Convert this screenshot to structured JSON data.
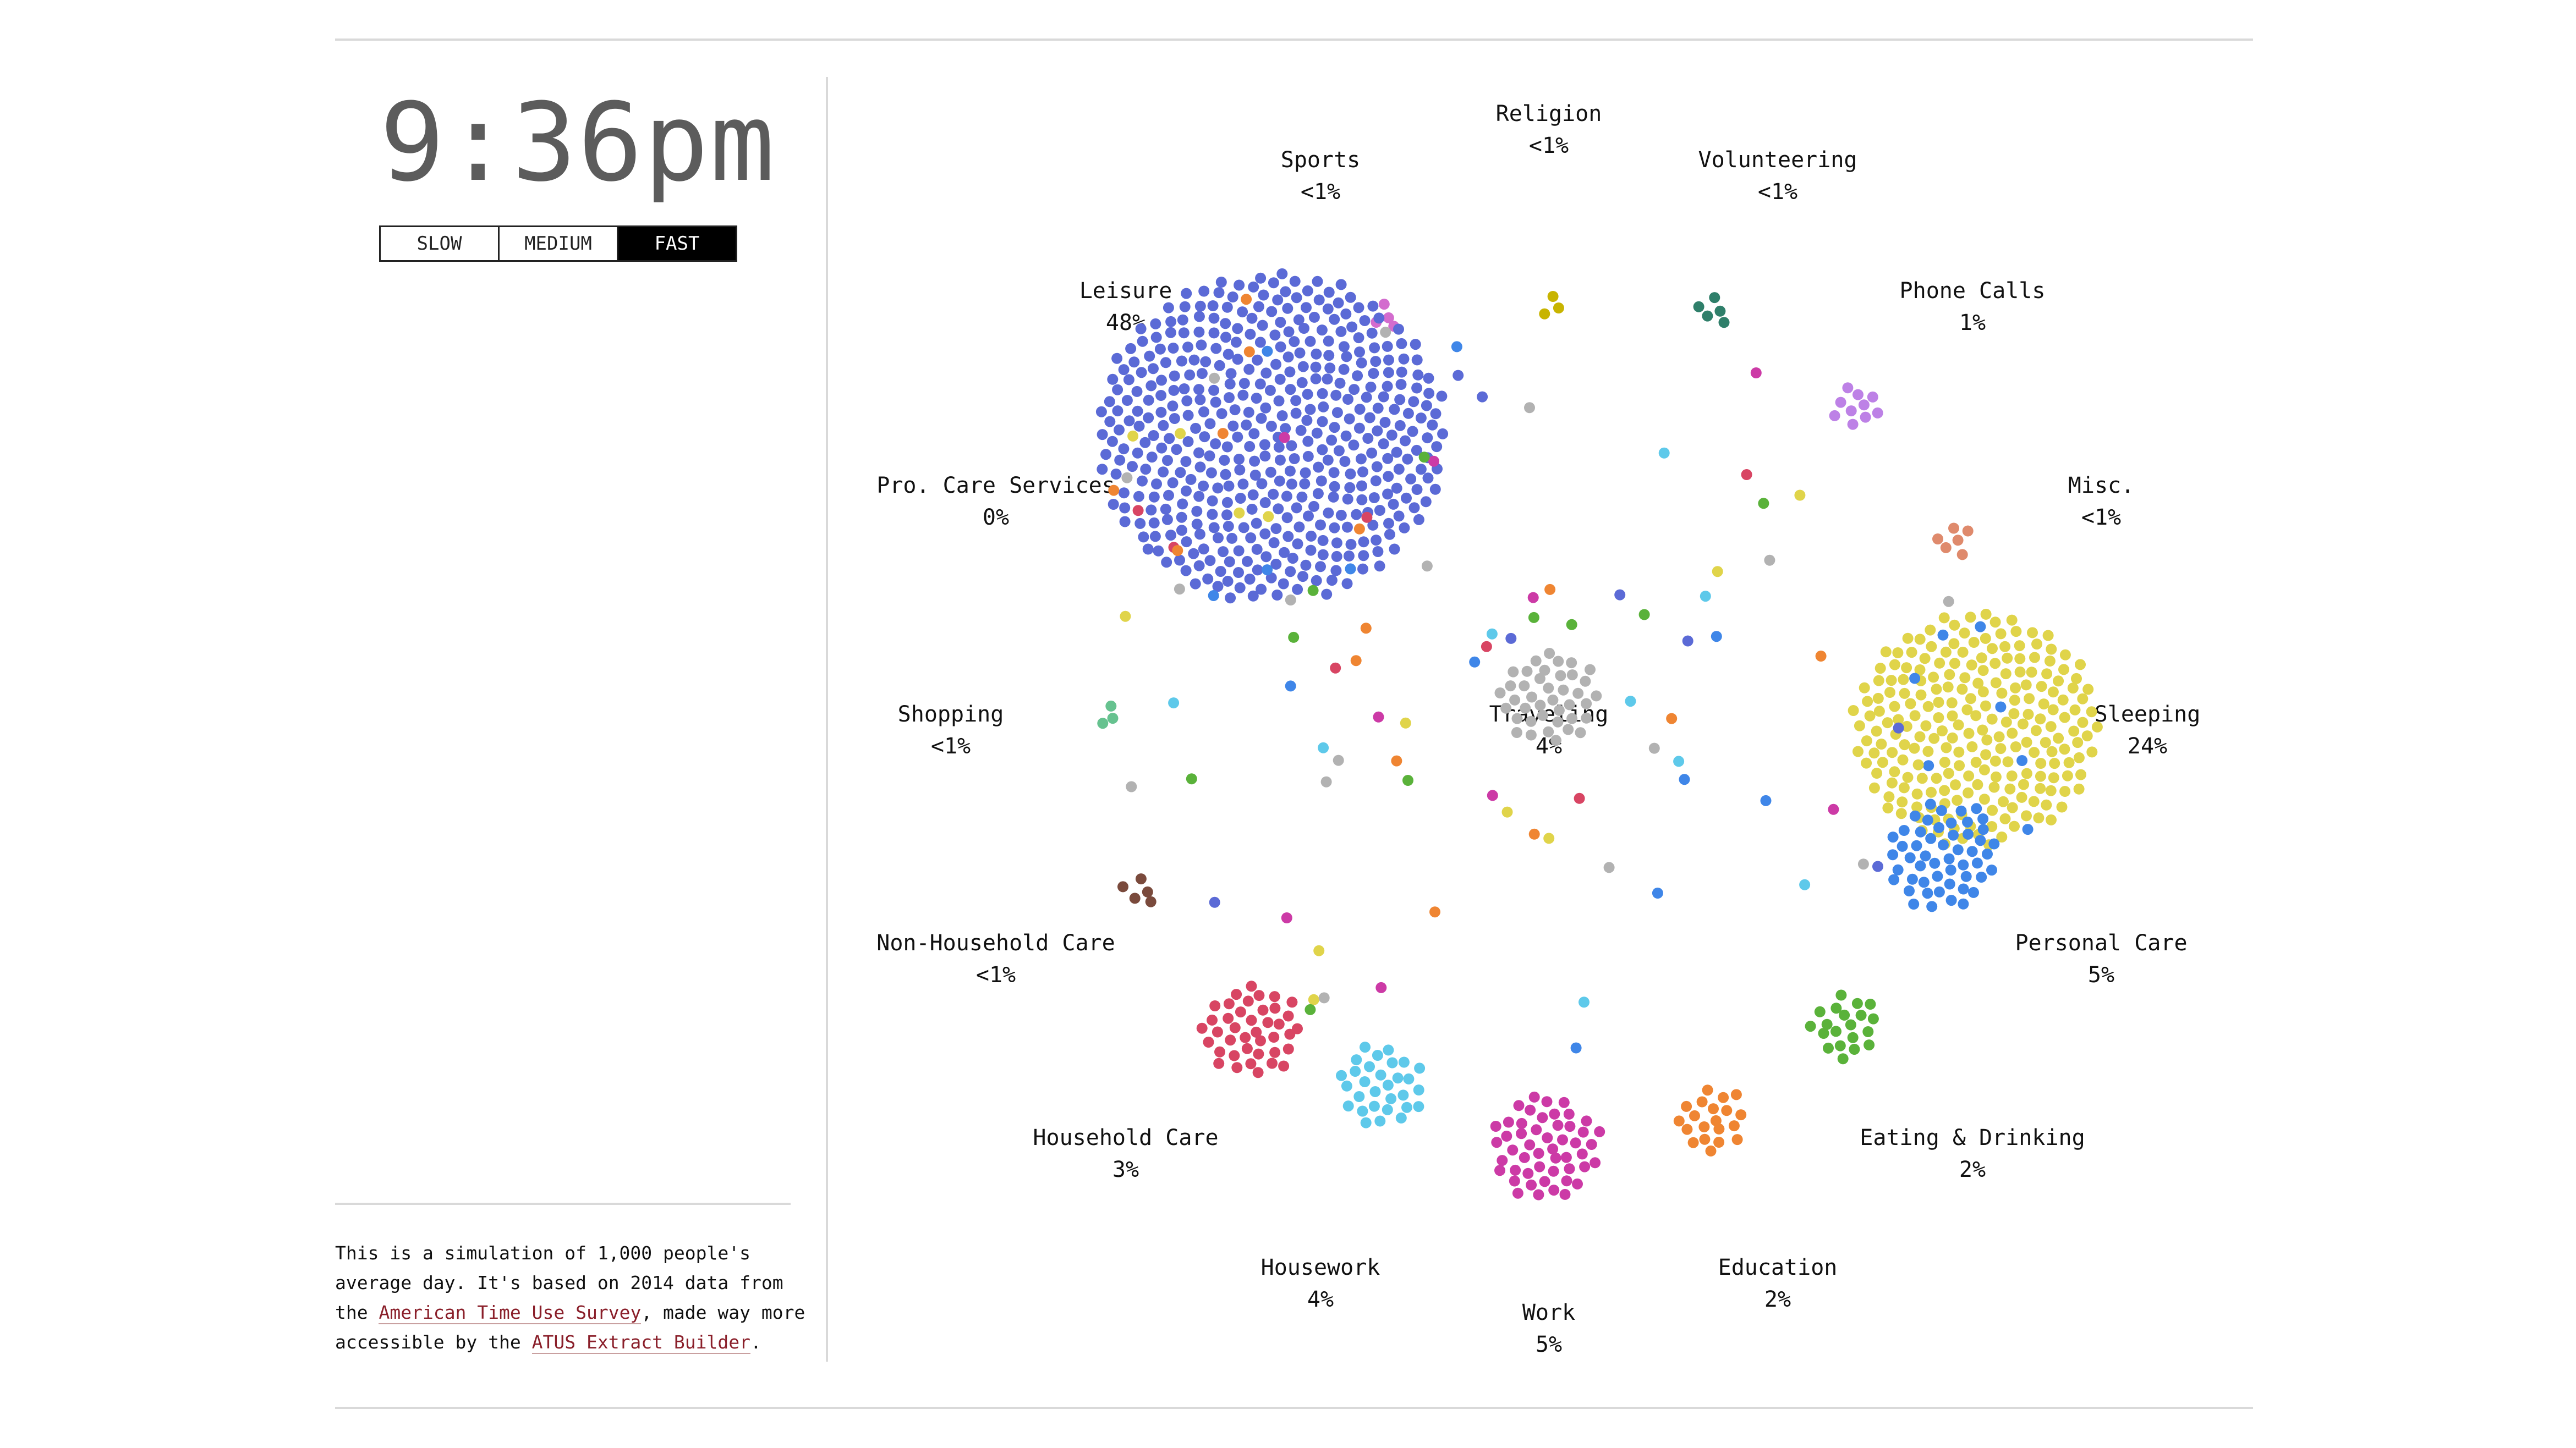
{
  "clock": {
    "time": "9:36pm"
  },
  "speed": {
    "options": [
      "SLOW",
      "MEDIUM",
      "FAST"
    ],
    "selected": "FAST"
  },
  "description": {
    "part1": "This is a simulation of 1,000 people's average day. It's based on 2014 data from the ",
    "link1": "American Time Use Survey",
    "part2": ", made way more accessible by the ",
    "link2": "ATUS Extract Builder",
    "part3": "."
  },
  "chart_data": {
    "type": "scatter",
    "title": "",
    "total_people": 1000,
    "categories": [
      {
        "key": "religion",
        "name": "Religion",
        "percent": "<1%",
        "color": "#c8b400",
        "count": 3
      },
      {
        "key": "sports",
        "name": "Sports",
        "percent": "<1%",
        "color": "#d36cce",
        "count": 4
      },
      {
        "key": "volunteering",
        "name": "Volunteering",
        "percent": "<1%",
        "color": "#2f7f6a",
        "count": 5
      },
      {
        "key": "leisure",
        "name": "Leisure",
        "percent": "48%",
        "color": "#5b6ad6",
        "count": 480
      },
      {
        "key": "phone",
        "name": "Phone Calls",
        "percent": "1%",
        "color": "#bd81e6",
        "count": 10
      },
      {
        "key": "procare",
        "name": "Pro. Care Services",
        "percent": "0%",
        "color": "#999999",
        "count": 0
      },
      {
        "key": "misc",
        "name": "Misc.",
        "percent": "<1%",
        "color": "#df8a6c",
        "count": 6
      },
      {
        "key": "shopping",
        "name": "Shopping",
        "percent": "<1%",
        "color": "#66c28f",
        "count": 3
      },
      {
        "key": "traveling",
        "name": "Traveling",
        "percent": "4%",
        "color": "#b2b2b2",
        "count": 40
      },
      {
        "key": "sleeping",
        "name": "Sleeping",
        "percent": "24%",
        "color": "#e0d44a",
        "count": 240
      },
      {
        "key": "nonhousehold",
        "name": "Non-Household Care",
        "percent": "<1%",
        "color": "#7a4a3c",
        "count": 5
      },
      {
        "key": "personalcare",
        "name": "Personal Care",
        "percent": "5%",
        "color": "#3f86e8",
        "count": 50
      },
      {
        "key": "householdcare",
        "name": "Household Care",
        "percent": "3%",
        "color": "#5ec9ea",
        "count": 30
      },
      {
        "key": "eating",
        "name": "Eating & Drinking",
        "percent": "2%",
        "color": "#5ab23a",
        "count": 20
      },
      {
        "key": "housework",
        "name": "Housework",
        "percent": "4%",
        "color": "#d84563",
        "count": 40
      },
      {
        "key": "education",
        "name": "Education",
        "percent": "2%",
        "color": "#ef8532",
        "count": 20
      },
      {
        "key": "work",
        "name": "Work",
        "percent": "5%",
        "color": "#cc3aa6",
        "count": 50
      }
    ],
    "in_transit": 80,
    "transit_colors": [
      "#5b6ad6",
      "#e0d44a",
      "#b2b2b2",
      "#3f86e8",
      "#d84563",
      "#5ec9ea",
      "#ef8532",
      "#cc3aa6",
      "#5ab23a"
    ],
    "xlabel": "",
    "ylabel": ""
  }
}
